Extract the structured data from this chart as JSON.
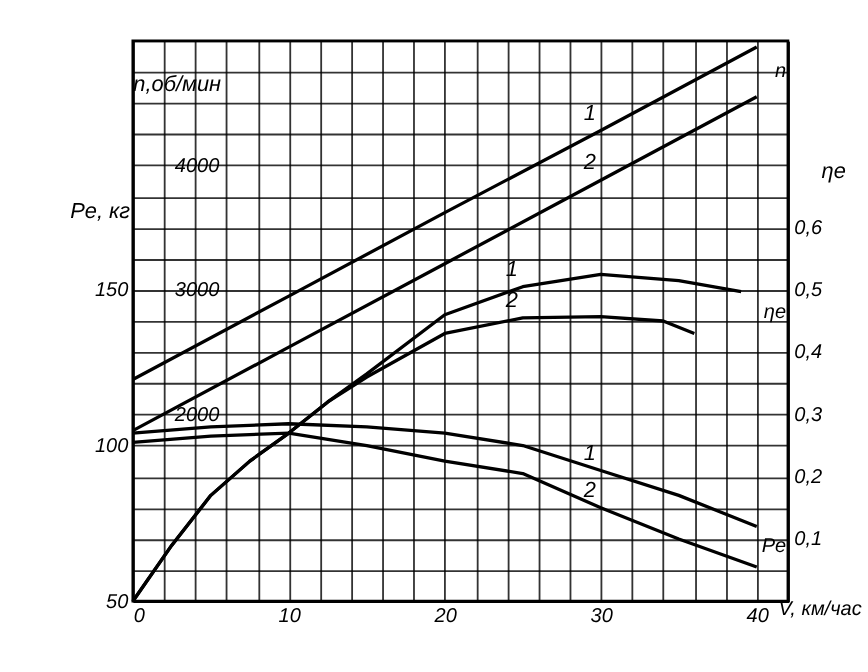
{
  "chart_data": {
    "type": "line",
    "xlabel": "V, км/час",
    "ylabel": "Pe, кг",
    "y2label": "ηe",
    "y3label": "n,об/мин",
    "xlim": [
      0,
      42
    ],
    "xticks": [
      0,
      {
        "value": 2,
        "label": null
      },
      {
        "value": 4,
        "label": null
      },
      {
        "value": 6,
        "label": null
      },
      {
        "value": 8,
        "label": null
      },
      10,
      {
        "value": 12,
        "label": null
      },
      {
        "value": 14,
        "label": null
      },
      {
        "value": 16,
        "label": null
      },
      {
        "value": 18,
        "label": null
      },
      20,
      {
        "value": 22,
        "label": null
      },
      {
        "value": 24,
        "label": null
      },
      {
        "value": 26,
        "label": null
      },
      {
        "value": 28,
        "label": null
      },
      30,
      {
        "value": 32,
        "label": null
      },
      {
        "value": 34,
        "label": null
      },
      {
        "value": 36,
        "label": null
      },
      {
        "value": 38,
        "label": null
      },
      40,
      {
        "value": 42,
        "label": null
      }
    ],
    "ylim": [
      50,
      230
    ],
    "yticks": [
      50,
      {
        "value": 60,
        "label": null
      },
      {
        "value": 70,
        "label": null
      },
      {
        "value": 80,
        "label": null
      },
      {
        "value": 90,
        "label": null
      },
      100,
      {
        "value": 110,
        "label": null
      },
      {
        "value": 120,
        "label": null
      },
      {
        "value": 130,
        "label": null
      },
      {
        "value": 140,
        "label": null
      },
      150,
      {
        "value": 160,
        "label": null
      },
      {
        "value": 170,
        "label": null
      },
      {
        "value": 180,
        "label": null
      },
      {
        "value": 190,
        "label": null
      },
      {
        "value": 200,
        "label": null
      },
      {
        "value": 210,
        "label": null
      },
      {
        "value": 220,
        "label": null
      },
      {
        "value": 230,
        "label": null
      }
    ],
    "y2lim": [
      0,
      0.9
    ],
    "y2ticks": [
      {
        "value": 0.1,
        "label": "0,1"
      },
      {
        "value": 0.2,
        "label": "0,2"
      },
      {
        "value": 0.3,
        "label": "0,3"
      },
      {
        "value": 0.4,
        "label": "0,4"
      },
      {
        "value": 0.5,
        "label": "0,5"
      },
      {
        "value": 0.6,
        "label": "0,6"
      }
    ],
    "y3lim": [
      500,
      5000
    ],
    "y3ticks": [
      2000,
      3000,
      4000
    ],
    "grid": true,
    "marker": "none",
    "line_style": "solid",
    "series": [
      {
        "name": "1",
        "axis": "y3",
        "color": "#000000",
        "x": [
          0,
          10,
          20,
          30,
          40
        ],
        "values": [
          2280,
          2950,
          3620,
          4280,
          4950
        ]
      },
      {
        "name": "2",
        "axis": "y3",
        "color": "#000000",
        "x": [
          0,
          10,
          20,
          30,
          40
        ],
        "values": [
          1870,
          2540,
          3210,
          3880,
          4550
        ]
      },
      {
        "name": "1",
        "axis": "y2",
        "color": "#000000",
        "x": [
          0,
          2.5,
          5,
          7.5,
          10,
          12.5,
          15,
          20,
          25,
          30,
          35,
          39
        ],
        "values": [
          0,
          0.09,
          0.17,
          0.225,
          0.27,
          0.32,
          0.365,
          0.46,
          0.505,
          0.525,
          0.515,
          0.497
        ]
      },
      {
        "name": "2",
        "axis": "y2",
        "color": "#000000",
        "x": [
          0,
          2.5,
          5,
          7.5,
          10,
          12.5,
          15,
          20,
          25,
          30,
          34,
          36
        ],
        "values": [
          0,
          0.09,
          0.17,
          0.225,
          0.27,
          0.32,
          0.36,
          0.43,
          0.455,
          0.457,
          0.45,
          0.43
        ]
      },
      {
        "name": "1",
        "axis": "y",
        "color": "#000000",
        "x": [
          0,
          5,
          10,
          15,
          20,
          25,
          30,
          35,
          40
        ],
        "values": [
          104,
          106,
          107,
          106,
          104,
          100,
          92,
          84,
          74
        ]
      },
      {
        "name": "2",
        "axis": "y",
        "color": "#000000",
        "x": [
          0,
          5,
          10,
          15,
          20,
          25,
          30,
          35,
          40
        ],
        "values": [
          101,
          103,
          104,
          100,
          95,
          91,
          80,
          70,
          61
        ]
      }
    ],
    "annotations": [
      "n",
      "ηe",
      "Pe"
    ]
  }
}
